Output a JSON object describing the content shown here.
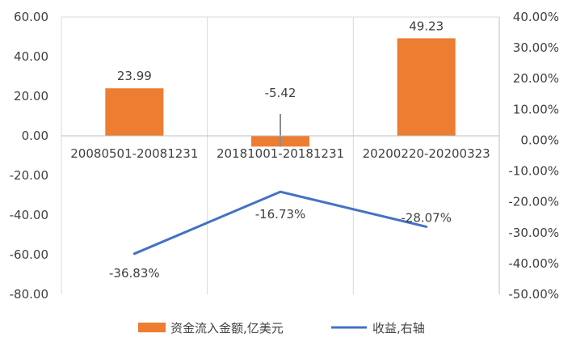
{
  "chart_data": {
    "type": "bar",
    "categories": [
      "20080501-20081231",
      "20181001-20181231",
      "20200220-20200323"
    ],
    "series": [
      {
        "name": "资金流入金额,亿美元",
        "type": "bar",
        "axis": "left",
        "values": [
          23.99,
          -5.42,
          49.23
        ],
        "labels": [
          "23.99",
          "-5.42",
          "49.23"
        ]
      },
      {
        "name": "收益,右轴",
        "type": "line",
        "axis": "right",
        "values": [
          -36.83,
          -16.73,
          -28.07
        ],
        "labels": [
          "-36.83%",
          "-16.73%",
          "-28.07%"
        ]
      }
    ],
    "y_left": {
      "ylim": [
        -80,
        60
      ],
      "ticks": [
        60,
        40,
        20,
        0,
        -20,
        -40,
        -60,
        -80
      ],
      "tick_labels": [
        "60.00",
        "40.00",
        "20.00",
        "0.00",
        "-20.00",
        "-40.00",
        "-60.00",
        "-80.00"
      ]
    },
    "y_right": {
      "ylim": [
        -50,
        40
      ],
      "ticks": [
        40,
        30,
        20,
        10,
        0,
        -10,
        -20,
        -30,
        -40,
        -50
      ],
      "tick_labels": [
        "40.00%",
        "30.00%",
        "20.00%",
        "10.00%",
        "0.00%",
        "-10.00%",
        "-20.00%",
        "-30.00%",
        "-40.00%",
        "-50.00%"
      ]
    },
    "colors": {
      "bar": "#ED7D31",
      "line": "#4472C4",
      "grid": "#D9D9D9",
      "axis": "#BFBFBF"
    },
    "grid": true,
    "legend": "bottom"
  }
}
